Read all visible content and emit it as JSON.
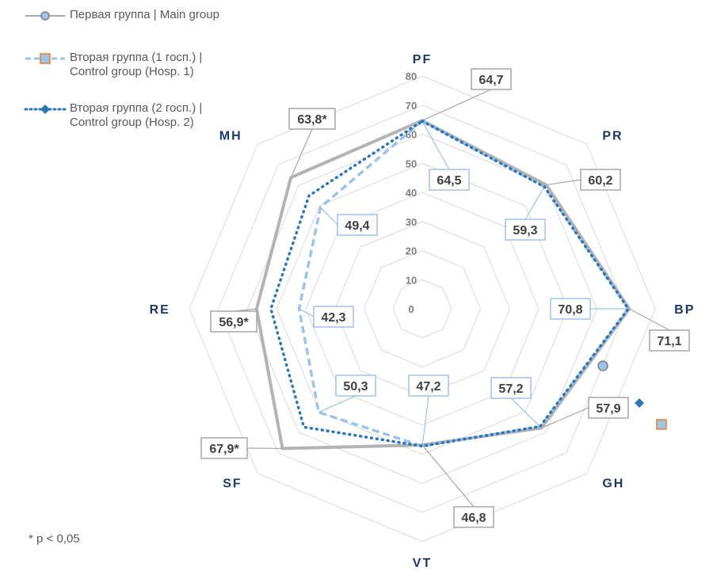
{
  "legend": {
    "main": "Первая группа | Main group",
    "hosp1_line1": "Вторая группа (1 госп.) |",
    "hosp1_line2": "Control group (Hosp. 1)",
    "hosp2_line1": "Вторая группа (2 госп.) |",
    "hosp2_line2": "Control group (Hosp. 2)"
  },
  "footnote": "* p < 0,05",
  "colors": {
    "main": "#a6a6a6",
    "hosp1": "#9dc3e6",
    "hosp2": "#2e75b6",
    "grid": "#d9d9d9",
    "axis_label": "#1f3864",
    "label_border_main": "#a6a6a6",
    "label_border_control": "#9dc3e6"
  },
  "chart_data": {
    "type": "radar",
    "categories": [
      "PF",
      "PR",
      "BP",
      "GH",
      "VT",
      "SF",
      "RE",
      "MH"
    ],
    "rticks": [
      "0",
      "10",
      "20",
      "30",
      "40",
      "50",
      "60",
      "70",
      "80"
    ],
    "rlim": [
      0,
      80
    ],
    "grid": true,
    "legend_position": "top-left",
    "series": [
      {
        "name": "Первая группа | Main group",
        "key": "main",
        "values": [
          64.7,
          60.2,
          71.1,
          57.9,
          46.8,
          67.9,
          56.9,
          63.8
        ]
      },
      {
        "name": "Вторая группа (1 госп.) | Control group (Hosp. 1)",
        "key": "hosp1",
        "values": [
          64.5,
          59.3,
          70.8,
          57.2,
          47.2,
          50.3,
          42.3,
          49.4
        ]
      },
      {
        "name": "Вторая группа (2 госп.) | Control group (Hosp. 2)",
        "key": "hosp2",
        "values": [
          64.5,
          59.3,
          70.8,
          57.2,
          47.2,
          57.5,
          52.0,
          55.0
        ]
      }
    ],
    "data_labels": [
      {
        "text": "64,7",
        "series": "main",
        "axis": "PF"
      },
      {
        "text": "64,5",
        "series": "control",
        "axis": "PF"
      },
      {
        "text": "60,2",
        "series": "main",
        "axis": "PR"
      },
      {
        "text": "59,3",
        "series": "control",
        "axis": "PR"
      },
      {
        "text": "71,1",
        "series": "main",
        "axis": "BP"
      },
      {
        "text": "70,8",
        "series": "control",
        "axis": "BP"
      },
      {
        "text": "57,9",
        "series": "main",
        "axis": "GH"
      },
      {
        "text": "57,2",
        "series": "control",
        "axis": "GH"
      },
      {
        "text": "46,8",
        "series": "main",
        "axis": "VT"
      },
      {
        "text": "47,2",
        "series": "control",
        "axis": "VT"
      },
      {
        "text": "67,9*",
        "series": "main",
        "axis": "SF"
      },
      {
        "text": "50,3",
        "series": "control",
        "axis": "SF"
      },
      {
        "text": "56,9*",
        "series": "main",
        "axis": "RE"
      },
      {
        "text": "42,3",
        "series": "control",
        "axis": "RE"
      },
      {
        "text": "63,8*",
        "series": "main",
        "axis": "MH"
      },
      {
        "text": "49,4",
        "series": "control",
        "axis": "MH"
      }
    ]
  }
}
